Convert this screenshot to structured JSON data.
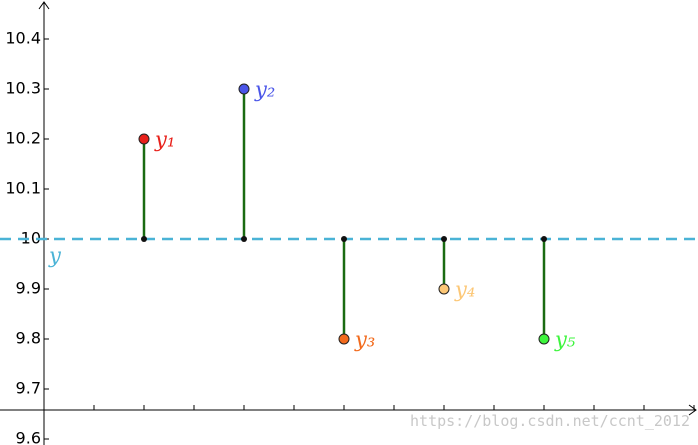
{
  "chart_data": {
    "type": "stem",
    "x": [
      1,
      2,
      3,
      4,
      5
    ],
    "series": [
      {
        "name": "y",
        "values": [
          10.2,
          10.3,
          9.8,
          9.9,
          9.8
        ],
        "colors": [
          "#e8201a",
          "#4a55e8",
          "#f26a1c",
          "#fcc776",
          "#3df53d"
        ],
        "point_labels": [
          "y₁",
          "y₂",
          "y₃",
          "y₄",
          "y₅"
        ]
      }
    ],
    "mean": 10,
    "mean_label": "y",
    "mean_color": "#4ab3d6",
    "stem_color": "#1a6b12",
    "xlim": [
      -0.44,
      6.54
    ],
    "xticks": [
      0.5,
      1,
      1.5,
      2,
      2.5,
      3,
      3.5,
      4,
      4.5,
      5,
      5.5,
      6,
      6.5
    ],
    "ylim": [
      9.588,
      10.478
    ],
    "yticks": [
      10.4,
      10.3,
      10.2,
      10.1,
      10,
      9.9,
      9.8,
      9.7,
      9.6
    ],
    "watermark": "https://blog.csdn.net/ccnt_2012"
  }
}
